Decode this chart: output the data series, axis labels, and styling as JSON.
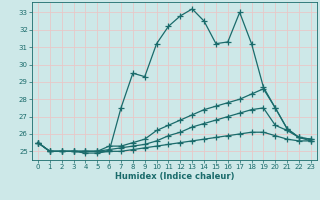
{
  "xlabel": "Humidex (Indice chaleur)",
  "background_color": "#cde8e8",
  "grid_color": "#e8c8c8",
  "line_color": "#1a6b6b",
  "xlim": [
    -0.5,
    23.5
  ],
  "ylim": [
    24.5,
    33.6
  ],
  "yticks": [
    25,
    26,
    27,
    28,
    29,
    30,
    31,
    32,
    33
  ],
  "xticks": [
    0,
    1,
    2,
    3,
    4,
    5,
    6,
    7,
    8,
    9,
    10,
    11,
    12,
    13,
    14,
    15,
    16,
    17,
    18,
    19,
    20,
    21,
    22,
    23
  ],
  "series": [
    {
      "x": [
        0,
        1,
        2,
        3,
        4,
        5,
        6,
        7,
        8,
        9,
        10,
        11,
        12,
        13,
        14,
        15,
        16,
        17,
        18,
        19,
        20,
        21,
        22,
        23
      ],
      "y": [
        25.5,
        25.0,
        25.0,
        25.0,
        25.0,
        25.0,
        25.0,
        27.5,
        29.5,
        29.3,
        31.2,
        32.2,
        32.8,
        33.2,
        32.5,
        31.2,
        31.3,
        33.0,
        31.2,
        28.7,
        27.5,
        26.3,
        25.8,
        25.7
      ]
    },
    {
      "x": [
        0,
        1,
        2,
        3,
        4,
        5,
        6,
        7,
        8,
        9,
        10,
        11,
        12,
        13,
        14,
        15,
        16,
        17,
        18,
        19,
        20,
        21,
        22,
        23
      ],
      "y": [
        25.5,
        25.0,
        25.0,
        25.0,
        25.0,
        25.0,
        25.3,
        25.3,
        25.5,
        25.7,
        26.2,
        26.5,
        26.8,
        27.1,
        27.4,
        27.6,
        27.8,
        28.0,
        28.3,
        28.6,
        27.5,
        26.3,
        25.8,
        25.7
      ]
    },
    {
      "x": [
        0,
        1,
        2,
        3,
        4,
        5,
        6,
        7,
        8,
        9,
        10,
        11,
        12,
        13,
        14,
        15,
        16,
        17,
        18,
        19,
        20,
        21,
        22,
        23
      ],
      "y": [
        25.5,
        25.0,
        25.0,
        25.0,
        25.0,
        25.0,
        25.1,
        25.2,
        25.3,
        25.4,
        25.6,
        25.9,
        26.1,
        26.4,
        26.6,
        26.8,
        27.0,
        27.2,
        27.4,
        27.5,
        26.5,
        26.2,
        25.8,
        25.6
      ]
    },
    {
      "x": [
        0,
        1,
        2,
        3,
        4,
        5,
        6,
        7,
        8,
        9,
        10,
        11,
        12,
        13,
        14,
        15,
        16,
        17,
        18,
        19,
        20,
        21,
        22,
        23
      ],
      "y": [
        25.5,
        25.0,
        25.0,
        25.0,
        24.9,
        24.9,
        25.0,
        25.0,
        25.1,
        25.2,
        25.3,
        25.4,
        25.5,
        25.6,
        25.7,
        25.8,
        25.9,
        26.0,
        26.1,
        26.1,
        25.9,
        25.7,
        25.6,
        25.6
      ]
    }
  ]
}
